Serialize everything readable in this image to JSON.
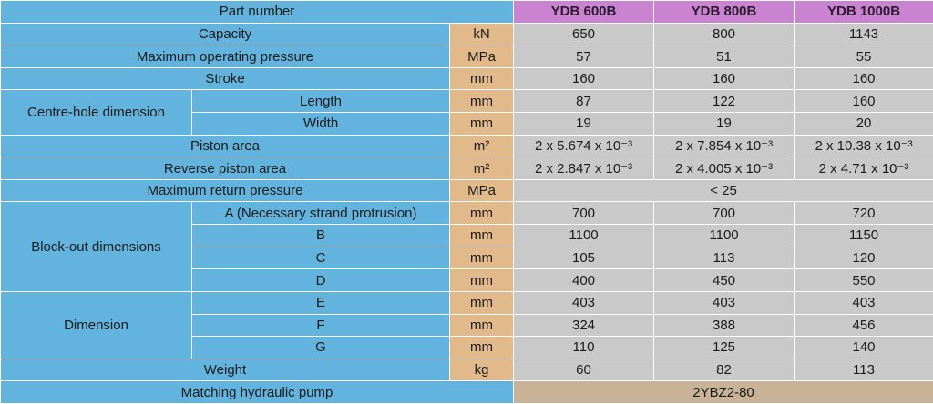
{
  "header": {
    "label": "Part number",
    "models": [
      "YDB 600B",
      "YDB 800B",
      "YDB 1000B"
    ]
  },
  "rows": [
    {
      "label": "Capacity",
      "unit": "kN",
      "values": [
        650,
        800,
        1143
      ]
    },
    {
      "label": "Maximum operating pressure",
      "unit": "MPa",
      "values": [
        57,
        51,
        55
      ]
    },
    {
      "label": "Stroke",
      "unit": "mm",
      "values": [
        160,
        160,
        160
      ]
    },
    {
      "label": "Centre-hole dimension",
      "rows": [
        {
          "label": "Length",
          "unit": "mm",
          "values": [
            87,
            122,
            160
          ]
        },
        {
          "label": "Width",
          "unit": "mm",
          "values": [
            19,
            19,
            20
          ]
        }
      ]
    },
    {
      "label": "Piston area",
      "unit": "m²",
      "values": [
        "2 x 5.674 x 10⁻³",
        "2 x 7.854 x 10⁻³",
        "2 x 10.38 x 10⁻³"
      ]
    },
    {
      "label": "Reverse piston area",
      "unit": "m²",
      "values": [
        "2 x 2.847 x 10⁻³",
        "2 x 4.005 x 10⁻³",
        "2 x 4.71 x 10⁻³"
      ]
    },
    {
      "label": "Maximum return pressure",
      "unit": "MPa",
      "values": [
        "< 25"
      ]
    },
    {
      "label": "Block-out dimensions",
      "rows": [
        {
          "label": "A (Necessary strand protrusion)",
          "unit": "mm",
          "values": [
            700,
            700,
            720
          ]
        },
        {
          "label": "B",
          "unit": "mm",
          "values": [
            1100,
            1100,
            1150
          ]
        },
        {
          "label": "C",
          "unit": "mm",
          "values": [
            105,
            113,
            120
          ]
        },
        {
          "label": "D",
          "unit": "mm",
          "values": [
            400,
            450,
            550
          ]
        }
      ]
    },
    {
      "label": "Dimension",
      "rows": [
        {
          "label": "E",
          "unit": "mm",
          "values": [
            403,
            403,
            403
          ]
        },
        {
          "label": "F",
          "unit": "mm",
          "values": [
            324,
            388,
            456
          ]
        },
        {
          "label": "G",
          "unit": "mm",
          "values": [
            110,
            125,
            140
          ]
        }
      ]
    },
    {
      "label": "Weight",
      "unit": "kg",
      "values": [
        60,
        82,
        113
      ]
    },
    {
      "label": "Matching hydraulic pump",
      "values": [
        "2YBZ2-80"
      ]
    }
  ]
}
